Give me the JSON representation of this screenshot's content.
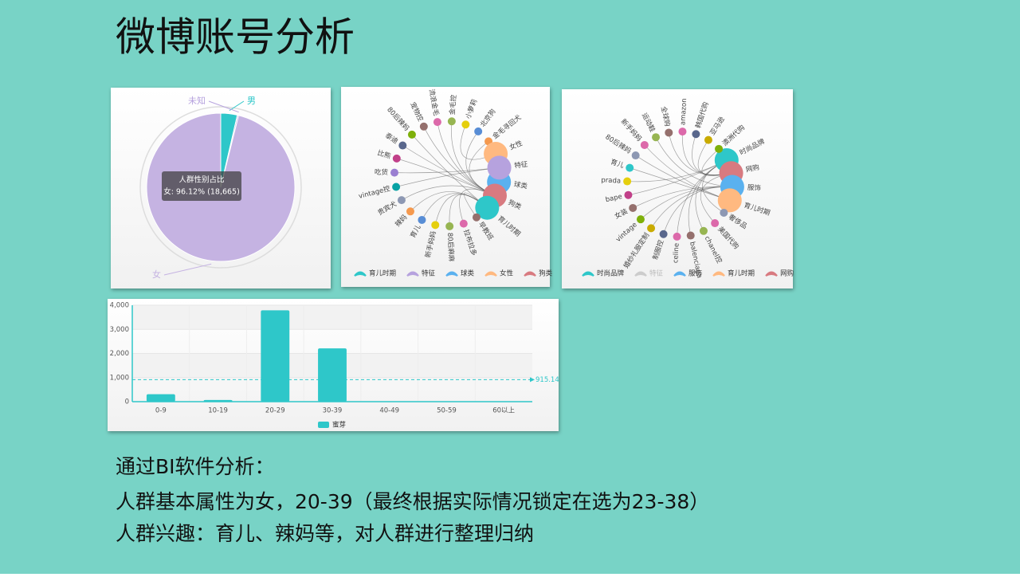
{
  "title": "微博账号分析",
  "chart_data": [
    {
      "type": "pie",
      "categories": [
        "男",
        "未知",
        "女"
      ],
      "values": [
        700,
        54,
        18665
      ],
      "colors": [
        "#2ec7c9",
        "#b6a2de",
        "#c5b3e2"
      ],
      "tooltip": {
        "title": "人群性别占比",
        "text": "女: 96.12% (18,665)"
      }
    },
    {
      "type": "graph",
      "legend": [
        "育儿时期",
        "特征",
        "球类",
        "女性",
        "狗类"
      ],
      "colors": [
        "#2ec7c9",
        "#b6a2de",
        "#5ab1ef",
        "#ffb980",
        "#d87a80"
      ],
      "legend_selected": [
        true,
        true,
        true,
        true,
        true
      ],
      "palette": [
        "#95706d",
        "#dc69aa",
        "#97b552",
        "#e5cf0d",
        "#588dd5",
        "#f5994e",
        "#8d98b3",
        "#07a2a4",
        "#9a7fd1",
        "#c14089",
        "#59678c",
        "#7eb00a"
      ],
      "nodes": [
        {
          "name": "球类",
          "category": 2
        },
        {
          "name": "狗类",
          "category": 4
        },
        {
          "name": "育儿时期",
          "category": 0
        },
        {
          "name": "早教班",
          "category": 0
        },
        {
          "name": "拉布拉多",
          "category": 4
        },
        {
          "name": "80后麻麻",
          "category": 0
        },
        {
          "name": "新手妈妈",
          "category": 0
        },
        {
          "name": "育儿",
          "category": 0
        },
        {
          "name": "辣妈",
          "category": 0
        },
        {
          "name": "贵宾犬",
          "category": 4
        },
        {
          "name": "vintage控",
          "category": 1
        },
        {
          "name": "吃货",
          "category": 1
        },
        {
          "name": "比熊",
          "category": 4
        },
        {
          "name": "泰迪",
          "category": 4
        },
        {
          "name": "80后辣妈",
          "category": 0
        },
        {
          "name": "宠物控",
          "category": 4
        },
        {
          "name": "流浪金毛",
          "category": 4
        },
        {
          "name": "金毛控",
          "category": 4
        },
        {
          "name": "小萝莉",
          "category": 3
        },
        {
          "name": "北京狗",
          "category": 4
        },
        {
          "name": "金毛寻回犬",
          "category": 4
        },
        {
          "name": "女性",
          "category": 3
        },
        {
          "name": "特征",
          "category": 1
        }
      ]
    },
    {
      "type": "graph",
      "legend": [
        "时尚品牌",
        "特征",
        "服饰",
        "育儿时期",
        "网购"
      ],
      "colors": [
        "#2ec7c9",
        "#b6a2de",
        "#5ab1ef",
        "#ffb980",
        "#d87a80"
      ],
      "legend_selected": [
        true,
        false,
        true,
        true,
        true
      ],
      "palette": [
        "#8d98b3",
        "#dc69aa",
        "#97b552",
        "#95706d",
        "#dc69aa",
        "#59678c",
        "#c9ab00",
        "#7eb00a",
        "#95706d",
        "#c14089",
        "#e5cf0d",
        "#2ec7c9"
      ],
      "nodes": [
        {
          "name": "时尚品牌",
          "category": 0
        },
        {
          "name": "网购",
          "category": 4
        },
        {
          "name": "服饰",
          "category": 2
        },
        {
          "name": "育儿时期",
          "category": 3
        },
        {
          "name": "奢侈品",
          "category": 0
        },
        {
          "name": "美国代购",
          "category": 4
        },
        {
          "name": "chanel控",
          "category": 0
        },
        {
          "name": "balenciaga",
          "category": 0
        },
        {
          "name": "celine",
          "category": 0
        },
        {
          "name": "制服控",
          "category": 2
        },
        {
          "name": "婚纱礼服定制",
          "category": 2
        },
        {
          "name": "vintage",
          "category": 2
        },
        {
          "name": "女装",
          "category": 2
        },
        {
          "name": "bape",
          "category": 0
        },
        {
          "name": "prada",
          "category": 0
        },
        {
          "name": "育儿",
          "category": 3
        },
        {
          "name": "80后辣妈",
          "category": 3
        },
        {
          "name": "新手妈妈",
          "category": 3
        },
        {
          "name": "运动鞋",
          "category": 2
        },
        {
          "name": "全球购",
          "category": 4
        },
        {
          "name": "amazon",
          "category": 4
        },
        {
          "name": "韩国代购",
          "category": 4
        },
        {
          "name": "亚马逊",
          "category": 4
        },
        {
          "name": "澳洲代购",
          "category": 4
        }
      ]
    },
    {
      "type": "bar",
      "categories": [
        "0-9",
        "10-19",
        "20-29",
        "30-39",
        "40-49",
        "50-59",
        "60以上"
      ],
      "series": [
        {
          "name": "蜜芽",
          "color": "#2ec7c9",
          "values": [
            310,
            70,
            3790,
            2210,
            10,
            8,
            8
          ]
        }
      ],
      "ylim": [
        0,
        4000
      ],
      "yticks": [
        0,
        {
          "value": 1000,
          "label": "1,000"
        },
        {
          "value": 2000,
          "label": "2,000"
        },
        {
          "value": 3000,
          "label": "3,000"
        },
        {
          "value": 4000,
          "label": "4,000"
        }
      ],
      "grid": true,
      "average": {
        "value": 915.14
      }
    }
  ],
  "notes": [
    "通过BI软件分析：",
    "人群基本属性为女，20-39（最终根据实际情况锁定在选为23-38）",
    "人群兴趣：育儿、辣妈等，对人群进行整理归纳"
  ]
}
